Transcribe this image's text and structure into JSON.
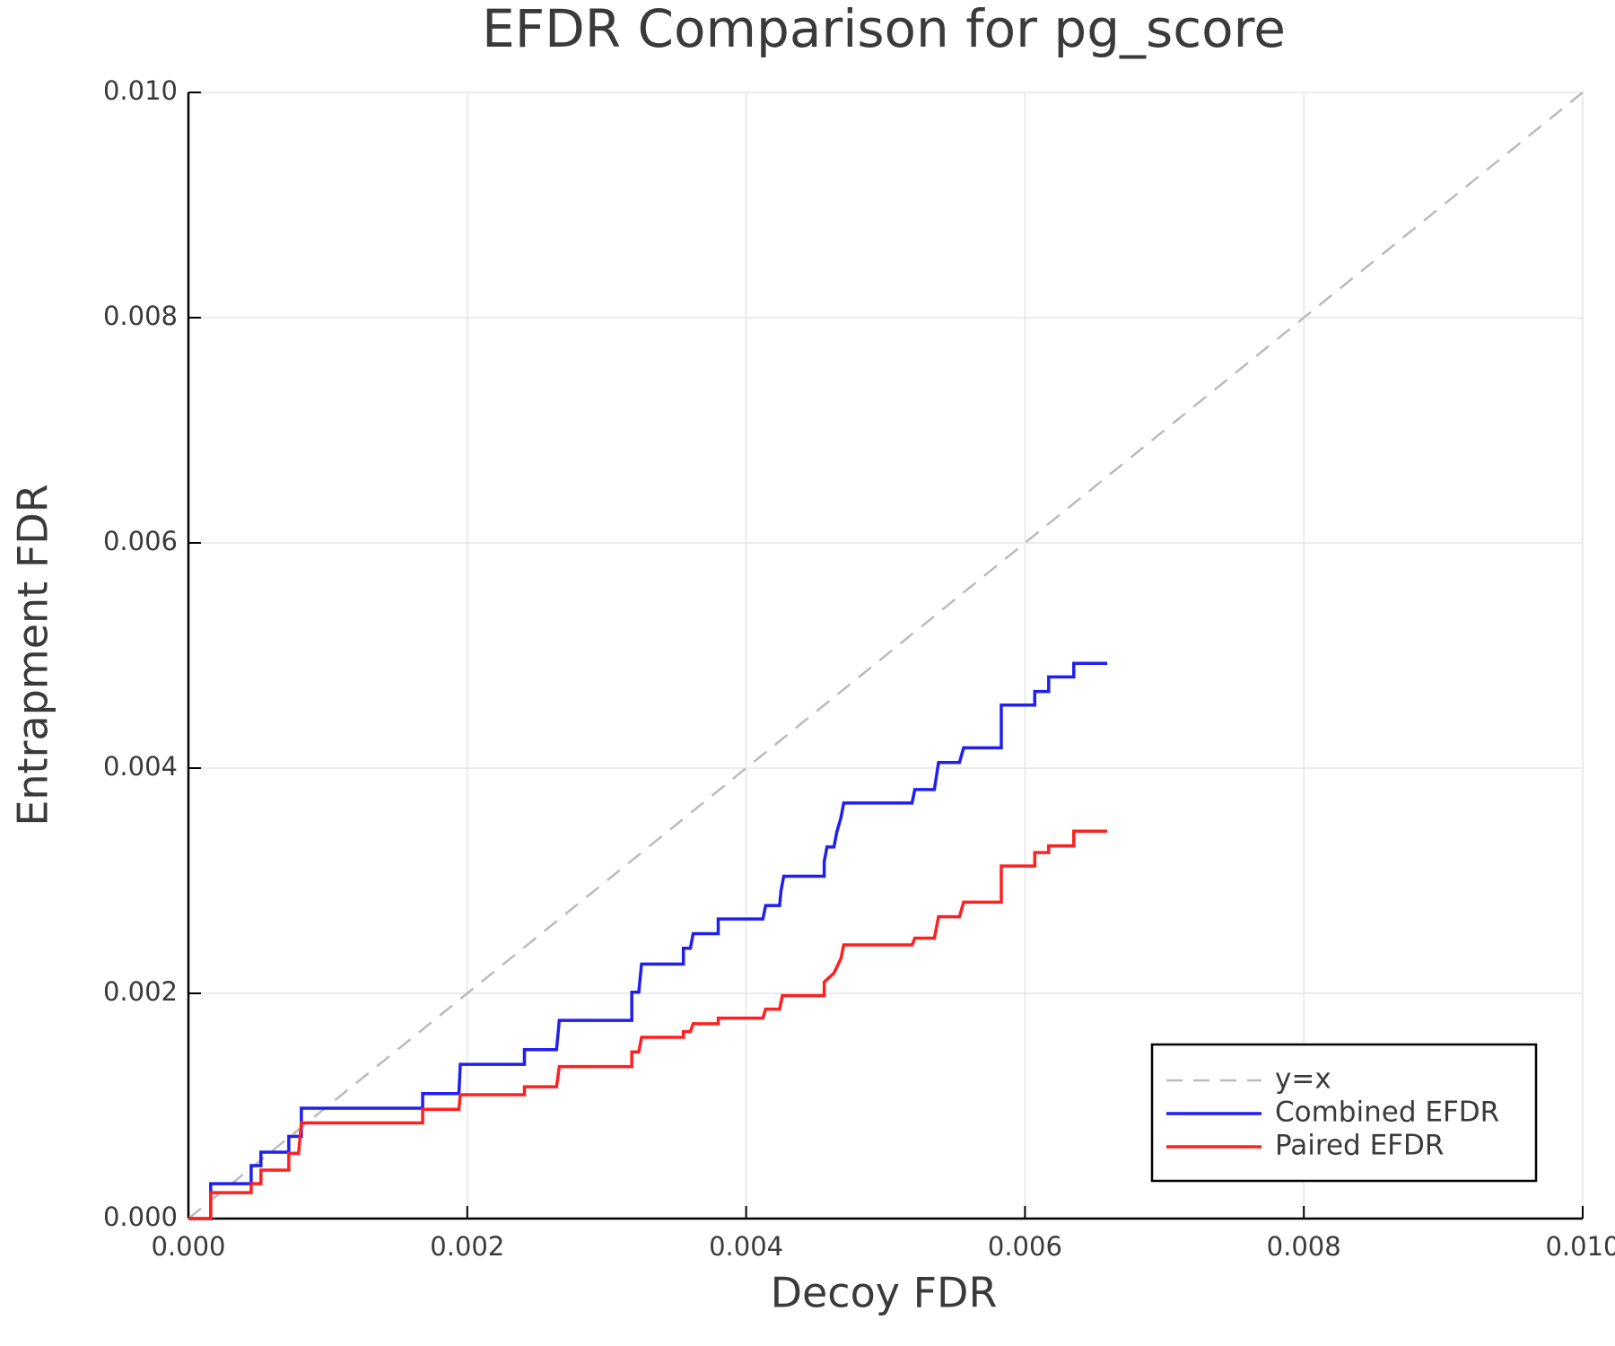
{
  "chart_data": {
    "type": "line",
    "title": "EFDR Comparison for pg_score",
    "x_label": "Decoy FDR",
    "y_label": "Entrapment FDR",
    "xlim": [
      0,
      0.01
    ],
    "ylim": [
      0,
      0.01
    ],
    "xticks": [
      {
        "value": 0,
        "label": "0.000"
      },
      {
        "value": 0.002,
        "label": "0.002"
      },
      {
        "value": 0.004,
        "label": "0.004"
      },
      {
        "value": 0.006,
        "label": "0.006"
      },
      {
        "value": 0.008,
        "label": "0.008"
      },
      {
        "value": 0.01,
        "label": "0.010"
      }
    ],
    "yticks": [
      {
        "value": 0,
        "label": "0.000"
      },
      {
        "value": 0.002,
        "label": "0.002"
      },
      {
        "value": 0.004,
        "label": "0.004"
      },
      {
        "value": 0.006,
        "label": "0.006"
      },
      {
        "value": 0.008,
        "label": "0.008"
      },
      {
        "value": 0.01,
        "label": "0.010"
      }
    ],
    "grid": true,
    "legend": "bottom right",
    "series": [
      {
        "name": "y=x",
        "color": "#bbbbbb",
        "line_style": "dashed",
        "x": [
          0,
          0.01
        ],
        "values": [
          0,
          0.01
        ]
      },
      {
        "name": "Combined EFDR",
        "color": "#1f1ff0",
        "line_style": "solid",
        "x": [
          0,
          0.00016,
          0.00016,
          0.00045,
          0.00045,
          0.00052,
          0.00052,
          0.00072,
          0.00072,
          0.00081,
          0.00081,
          0.00168,
          0.00168,
          0.00194,
          0.00195,
          0.00241,
          0.00241,
          0.00264,
          0.00266,
          0.00318,
          0.00318,
          0.00323,
          0.00325,
          0.00355,
          0.00355,
          0.0036,
          0.00362,
          0.0038,
          0.0038,
          0.00412,
          0.00414,
          0.00424,
          0.00425,
          0.00427,
          0.00456,
          0.00456,
          0.00458,
          0.00463,
          0.00465,
          0.00468,
          0.0047,
          0.00519,
          0.00521,
          0.00535,
          0.00538,
          0.00553,
          0.00556,
          0.00583,
          0.00583,
          0.00607,
          0.00607,
          0.00617,
          0.00617,
          0.00635,
          0.00635,
          0.00659
        ],
        "values": [
          0,
          0,
          0.00031,
          0.00031,
          0.00047,
          0.00047,
          0.00059,
          0.00059,
          0.00073,
          0.00073,
          0.00098,
          0.00098,
          0.00111,
          0.00111,
          0.00137,
          0.00137,
          0.0015,
          0.0015,
          0.00176,
          0.00176,
          0.00201,
          0.00201,
          0.00226,
          0.00226,
          0.0024,
          0.0024,
          0.00253,
          0.00253,
          0.00266,
          0.00266,
          0.00278,
          0.00278,
          0.00291,
          0.00304,
          0.00304,
          0.00317,
          0.0033,
          0.0033,
          0.00343,
          0.00356,
          0.00369,
          0.00369,
          0.00381,
          0.00381,
          0.00405,
          0.00405,
          0.00418,
          0.00418,
          0.00456,
          0.00456,
          0.00468,
          0.00468,
          0.00481,
          0.00481,
          0.00493,
          0.00493
        ]
      },
      {
        "name": "Paired EFDR",
        "color": "#ff2020",
        "line_style": "solid",
        "x": [
          0,
          0.00016,
          0.00016,
          0.00045,
          0.00045,
          0.00052,
          0.00052,
          0.00072,
          0.00072,
          0.00079,
          0.00081,
          0.00168,
          0.00168,
          0.00194,
          0.00195,
          0.00241,
          0.00241,
          0.00264,
          0.00266,
          0.00318,
          0.00318,
          0.00323,
          0.00325,
          0.00355,
          0.00355,
          0.0036,
          0.00362,
          0.0038,
          0.0038,
          0.00412,
          0.00414,
          0.00424,
          0.00426,
          0.00456,
          0.00456,
          0.00463,
          0.00468,
          0.0047,
          0.00519,
          0.00521,
          0.00535,
          0.00538,
          0.00553,
          0.00556,
          0.00583,
          0.00583,
          0.00607,
          0.00607,
          0.00617,
          0.00617,
          0.00635,
          0.00635,
          0.00659
        ],
        "values": [
          0,
          0,
          0.00023,
          0.00023,
          0.00031,
          0.00031,
          0.00043,
          0.00043,
          0.00058,
          0.00058,
          0.00085,
          0.00085,
          0.00097,
          0.00097,
          0.0011,
          0.0011,
          0.00117,
          0.00117,
          0.00135,
          0.00135,
          0.00148,
          0.00148,
          0.00161,
          0.00161,
          0.00166,
          0.00166,
          0.00173,
          0.00173,
          0.00178,
          0.00178,
          0.00186,
          0.00186,
          0.00198,
          0.00198,
          0.0021,
          0.00218,
          0.00231,
          0.00243,
          0.00243,
          0.00249,
          0.00249,
          0.00268,
          0.00268,
          0.00281,
          0.00281,
          0.00313,
          0.00313,
          0.00325,
          0.00325,
          0.00331,
          0.00331,
          0.00344,
          0.00344
        ]
      }
    ]
  }
}
